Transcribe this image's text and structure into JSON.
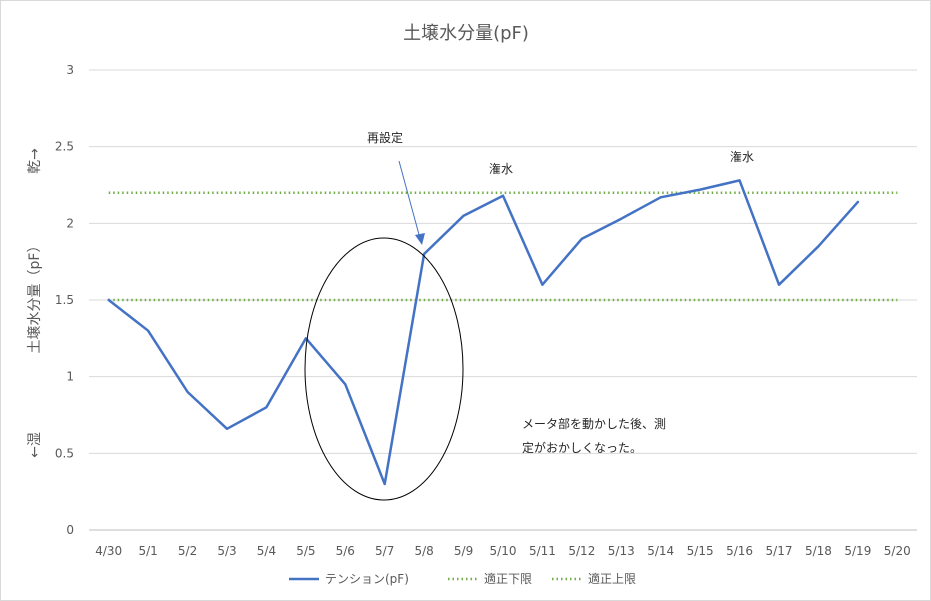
{
  "chart_data": {
    "type": "line",
    "title": "土壌水分量(pF)",
    "ylabel_parts": [
      "←湿",
      "土壌水分量（pF）",
      "乾→"
    ],
    "ylim": [
      0,
      3
    ],
    "yticks": [
      0,
      0.5,
      1,
      1.5,
      2,
      2.5,
      3
    ],
    "ytick_labels": [
      "0",
      "0.5",
      "1",
      "1.5",
      "2",
      "2.5",
      "3"
    ],
    "categories": [
      "4/30",
      "5/1",
      "5/2",
      "5/3",
      "5/4",
      "5/5",
      "5/6",
      "5/7",
      "5/8",
      "5/9",
      "5/10",
      "5/11",
      "5/12",
      "5/13",
      "5/14",
      "5/15",
      "5/16",
      "5/17",
      "5/18",
      "5/19",
      "5/20"
    ],
    "grid": true,
    "legend_position": "bottom",
    "series": [
      {
        "name": "テンション(pF)",
        "color": "#4472c4",
        "style": "solid",
        "values": [
          1.5,
          1.3,
          0.9,
          0.66,
          0.8,
          1.25,
          0.95,
          0.3,
          1.8,
          2.05,
          2.18,
          1.6,
          1.9,
          2.03,
          2.17,
          2.22,
          2.28,
          1.6,
          1.85,
          2.14,
          null
        ]
      },
      {
        "name": "適正下限",
        "color": "#70ad47",
        "style": "dotted",
        "values": [
          1.5,
          1.5,
          1.5,
          1.5,
          1.5,
          1.5,
          1.5,
          1.5,
          1.5,
          1.5,
          1.5,
          1.5,
          1.5,
          1.5,
          1.5,
          1.5,
          1.5,
          1.5,
          1.5,
          1.5,
          1.5
        ]
      },
      {
        "name": "適正上限",
        "color": "#70ad47",
        "style": "dotted",
        "values": [
          2.2,
          2.2,
          2.2,
          2.2,
          2.2,
          2.2,
          2.2,
          2.2,
          2.2,
          2.2,
          2.2,
          2.2,
          2.2,
          2.2,
          2.2,
          2.2,
          2.2,
          2.2,
          2.2,
          2.2,
          2.2
        ]
      }
    ],
    "annotations": [
      {
        "id": "resetting",
        "text": "再設定",
        "x": "5/8",
        "y": 1.85,
        "with_arrow": true
      },
      {
        "id": "watering-1",
        "text": "潅水",
        "x": "5/10",
        "y": 2.35
      },
      {
        "id": "watering-2",
        "text": "潅水",
        "x": "5/16",
        "y": 2.43
      },
      {
        "id": "note",
        "lines": [
          "メータ部を動かした後、測",
          "定がおかしくなった。"
        ]
      }
    ]
  }
}
